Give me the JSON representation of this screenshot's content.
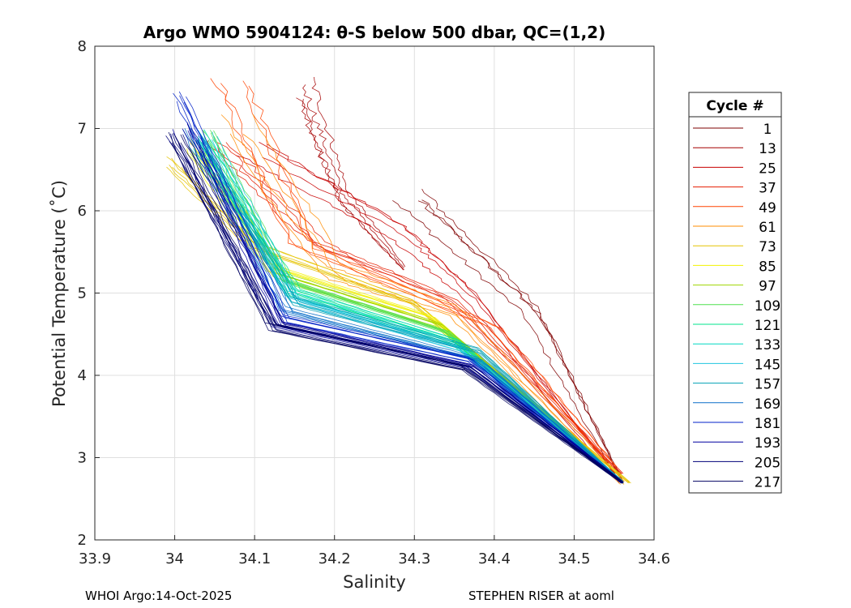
{
  "chart_data": {
    "type": "line",
    "title": "Argo WMO 5904124: θ-S below 500 dbar,  QC=(1,2)",
    "xlabel": "Salinity",
    "ylabel": "Potential Temperature (˚C)",
    "xlim": [
      33.9,
      34.6
    ],
    "ylim": [
      2,
      8
    ],
    "xticks": [
      "33.9",
      "34",
      "34.1",
      "34.2",
      "34.3",
      "34.4",
      "34.5",
      "34.6"
    ],
    "yticks": [
      "2",
      "3",
      "4",
      "5",
      "6",
      "7",
      "8"
    ],
    "grid": true,
    "legend_title": "Cycle #",
    "legend_position": "outside-right",
    "series": [
      {
        "name": "1",
        "color": "#7f0000",
        "x": [
          34.3,
          34.45,
          34.56
        ],
        "y": [
          6.2,
          4.8,
          2.7
        ]
      },
      {
        "name": "13",
        "color": "#a50000",
        "x": [
          34.18,
          34.22,
          34.29
        ],
        "y": [
          7.5,
          6.2,
          5.3
        ]
      },
      {
        "name": "25",
        "color": "#c80000",
        "x": [
          34.1,
          34.28,
          34.37,
          34.55
        ],
        "y": [
          6.8,
          5.8,
          5.0,
          2.8
        ]
      },
      {
        "name": "37",
        "color": "#e61e00",
        "x": [
          34.06,
          34.18,
          34.35,
          34.56
        ],
        "y": [
          6.8,
          5.6,
          4.9,
          2.8
        ]
      },
      {
        "name": "49",
        "color": "#ff4400",
        "x": [
          34.07,
          34.16,
          34.4,
          34.55
        ],
        "y": [
          7.6,
          5.6,
          4.6,
          2.9
        ]
      },
      {
        "name": "61",
        "color": "#ff8c00",
        "x": [
          34.08,
          34.2,
          34.35,
          34.56
        ],
        "y": [
          7.1,
          5.3,
          4.8,
          2.7
        ]
      },
      {
        "name": "73",
        "color": "#e6c300",
        "x": [
          34.0,
          34.1,
          34.3,
          34.57
        ],
        "y": [
          6.6,
          5.6,
          4.9,
          2.7
        ]
      },
      {
        "name": "85",
        "color": "#f2f200",
        "x": [
          34.02,
          34.12,
          34.32,
          34.56
        ],
        "y": [
          6.8,
          5.3,
          4.7,
          2.7
        ]
      },
      {
        "name": "97",
        "color": "#9ed600",
        "x": [
          34.03,
          34.13,
          34.33,
          34.56
        ],
        "y": [
          6.7,
          5.2,
          4.6,
          2.7
        ]
      },
      {
        "name": "109",
        "color": "#4fe04f",
        "x": [
          34.04,
          34.14,
          34.34,
          34.56
        ],
        "y": [
          6.9,
          5.1,
          4.5,
          2.7
        ]
      },
      {
        "name": "121",
        "color": "#00e68c",
        "x": [
          34.03,
          34.15,
          34.35,
          34.56
        ],
        "y": [
          6.8,
          5.0,
          4.4,
          2.7
        ]
      },
      {
        "name": "133",
        "color": "#00d9c2",
        "x": [
          34.03,
          34.14,
          34.35,
          34.56
        ],
        "y": [
          6.9,
          5.0,
          4.4,
          2.7
        ]
      },
      {
        "name": "145",
        "color": "#21c6e0",
        "x": [
          34.04,
          34.15,
          34.36,
          34.56
        ],
        "y": [
          6.9,
          4.9,
          4.3,
          2.7
        ]
      },
      {
        "name": "157",
        "color": "#00a0b4",
        "x": [
          34.03,
          34.15,
          34.38,
          34.56
        ],
        "y": [
          6.8,
          4.9,
          4.3,
          2.7
        ]
      },
      {
        "name": "169",
        "color": "#0a6ec8",
        "x": [
          34.02,
          34.14,
          34.38,
          34.56
        ],
        "y": [
          7.0,
          4.8,
          4.2,
          2.7
        ]
      },
      {
        "name": "181",
        "color": "#0020c8",
        "x": [
          34.01,
          34.14,
          34.37,
          34.56
        ],
        "y": [
          7.4,
          4.7,
          4.2,
          2.7
        ]
      },
      {
        "name": "193",
        "color": "#0000a0",
        "x": [
          34.01,
          34.13,
          34.37,
          34.56
        ],
        "y": [
          7.0,
          4.6,
          4.1,
          2.7
        ]
      },
      {
        "name": "205",
        "color": "#00007a",
        "x": [
          34.0,
          34.13,
          34.37,
          34.56
        ],
        "y": [
          6.9,
          4.6,
          4.1,
          2.7
        ]
      },
      {
        "name": "217",
        "color": "#000060",
        "x": [
          34.0,
          34.12,
          34.36,
          34.56
        ],
        "y": [
          6.9,
          4.6,
          4.1,
          2.7
        ]
      }
    ]
  },
  "footer": {
    "left": "WHOI Argo:14-Oct-2025",
    "right": "STEPHEN RISER at aoml"
  }
}
